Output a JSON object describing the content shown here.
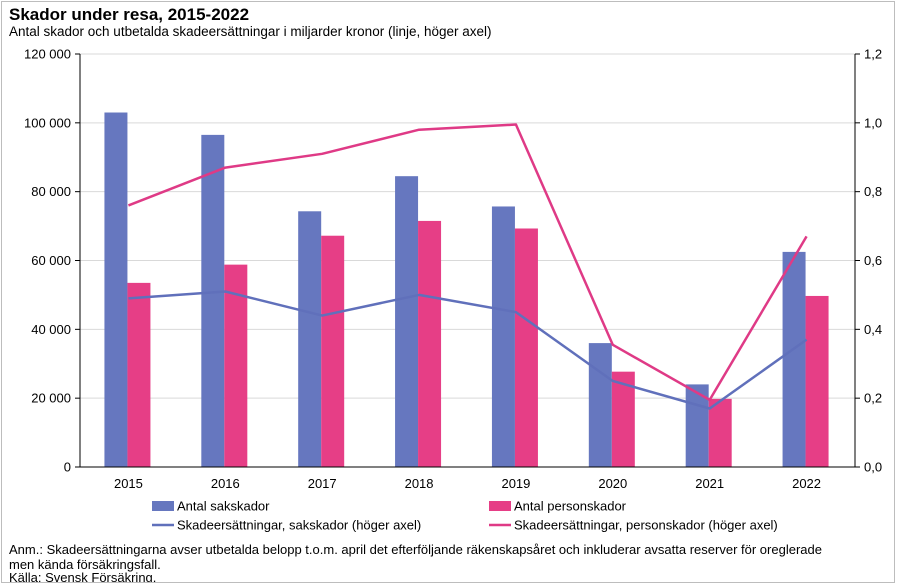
{
  "title": "Skador under resa, 2015-2022",
  "subtitle": "Antal skador och utbetalda skadeersättningar i miljarder kronor (linje, höger axel)",
  "note": "Anm.: Skadeersättningarna avser utbetalda belopp t.o.m. april det efterföljande räkenskapsåret och inkluderar avsatta reserver för oreglerade men kända försäkringsfall.",
  "source": "Källa: Svensk Försäkring.",
  "colors": {
    "sakskador_bar": "#6677bf",
    "personskador_bar": "#e63e86",
    "sakskador_line": "#6070bb",
    "personskador_line": "#df3a86"
  },
  "chart_data": {
    "type": "bar",
    "categories": [
      "2015",
      "2016",
      "2017",
      "2018",
      "2019",
      "2020",
      "2021",
      "2022"
    ],
    "y_left": {
      "ylim": [
        0,
        120000
      ],
      "ticks": [
        0,
        20000,
        40000,
        60000,
        80000,
        100000,
        120000
      ],
      "tick_labels": [
        "0",
        "20 000",
        "40 000",
        "60 000",
        "80 000",
        "100 000",
        "120 000"
      ]
    },
    "y_right": {
      "ylim": [
        0,
        1.2
      ],
      "ticks": [
        0,
        0.2,
        0.4,
        0.6,
        0.8,
        1.0,
        1.2
      ],
      "tick_labels": [
        "0,0",
        "0,2",
        "0,4",
        "0,6",
        "0,8",
        "1,0",
        "1,2"
      ]
    },
    "series": [
      {
        "name": "Antal sakskador",
        "type": "bar",
        "axis": "left",
        "values": [
          103000,
          96500,
          74300,
          84500,
          75700,
          36000,
          24000,
          62500
        ]
      },
      {
        "name": "Antal personskador",
        "type": "bar",
        "axis": "left",
        "values": [
          53500,
          58800,
          67200,
          71500,
          69300,
          27700,
          19800,
          49700
        ]
      },
      {
        "name": "Skadeersättningar, sakskador (höger axel)",
        "type": "line",
        "axis": "right",
        "values": [
          0.49,
          0.51,
          0.44,
          0.5,
          0.45,
          0.25,
          0.17,
          0.37
        ]
      },
      {
        "name": "Skadeersättningar, personskador (höger axel)",
        "type": "line",
        "axis": "right",
        "values": [
          0.76,
          0.87,
          0.91,
          0.98,
          0.995,
          0.355,
          0.195,
          0.67
        ]
      }
    ],
    "grid": "horizontal",
    "legend": "bottom"
  }
}
